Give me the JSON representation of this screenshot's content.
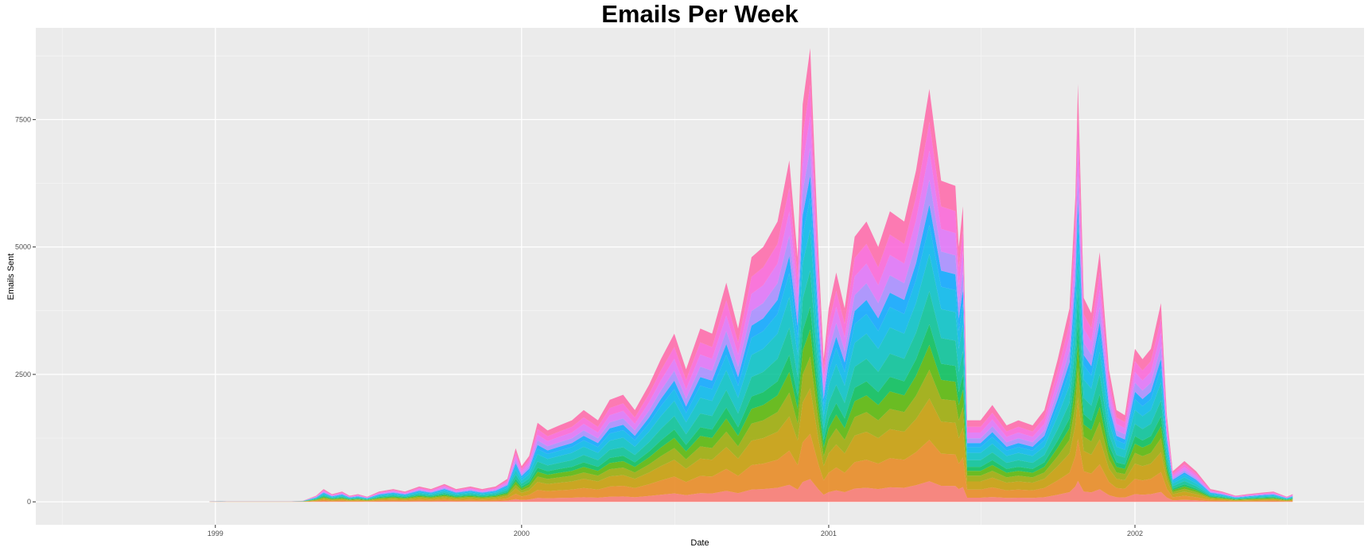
{
  "chart_data": {
    "type": "area",
    "stacked": true,
    "title": "Emails Per Week",
    "xlabel": "Date",
    "ylabel": "Emails Sent",
    "xlim": [
      "1998-06-01",
      "2002-10-01"
    ],
    "ylim": [
      -450,
      9300
    ],
    "x_ticks": [
      {
        "date": "1999-01-01",
        "label": "1999"
      },
      {
        "date": "2000-01-01",
        "label": "2000"
      },
      {
        "date": "2001-01-01",
        "label": "2001"
      },
      {
        "date": "2002-01-01",
        "label": "2002"
      }
    ],
    "y_ticks": [
      0,
      2500,
      5000,
      7500
    ],
    "grid": true,
    "legend": "none",
    "background": "#ebebeb",
    "series_colors": [
      "#f8766d",
      "#e7861b",
      "#c49a00",
      "#99a800",
      "#53b400",
      "#00bc56",
      "#00c094",
      "#00bfc4",
      "#00b6eb",
      "#06a4ff",
      "#a58aff",
      "#df70f8",
      "#fb61d7",
      "#ff66a8"
    ],
    "series_shares": [
      0.05,
      0.1,
      0.1,
      0.07,
      0.06,
      0.05,
      0.08,
      0.09,
      0.07,
      0.05,
      0.06,
      0.07,
      0.07,
      0.08
    ],
    "total_series": {
      "dates": [
        "1998-12-25",
        "1999-01-08",
        "1999-01-15",
        "1999-02-01",
        "1999-03-01",
        "1999-04-01",
        "1999-04-15",
        "1999-05-01",
        "1999-05-10",
        "1999-05-20",
        "1999-06-01",
        "1999-06-10",
        "1999-06-20",
        "1999-07-01",
        "1999-07-15",
        "1999-08-01",
        "1999-08-15",
        "1999-09-01",
        "1999-09-15",
        "1999-10-01",
        "1999-10-15",
        "1999-11-01",
        "1999-11-15",
        "1999-12-01",
        "1999-12-15",
        "1999-12-25",
        "2000-01-01",
        "2000-01-10",
        "2000-01-20",
        "2000-02-01",
        "2000-02-15",
        "2000-03-01",
        "2000-03-15",
        "2000-04-01",
        "2000-04-15",
        "2000-05-01",
        "2000-05-15",
        "2000-06-01",
        "2000-06-15",
        "2000-07-01",
        "2000-07-15",
        "2000-08-01",
        "2000-08-15",
        "2000-09-01",
        "2000-09-15",
        "2000-10-01",
        "2000-10-15",
        "2000-11-01",
        "2000-11-15",
        "2000-11-25",
        "2000-12-01",
        "2000-12-10",
        "2000-12-20",
        "2000-12-26",
        "2001-01-01",
        "2001-01-10",
        "2001-01-20",
        "2001-02-01",
        "2001-02-15",
        "2001-03-01",
        "2001-03-15",
        "2001-04-01",
        "2001-04-15",
        "2001-04-25",
        "2001-05-01",
        "2001-05-15",
        "2001-06-01",
        "2001-06-05",
        "2001-06-10",
        "2001-06-15",
        "2001-07-01",
        "2001-07-15",
        "2001-08-01",
        "2001-08-15",
        "2001-09-01",
        "2001-09-15",
        "2001-10-01",
        "2001-10-15",
        "2001-10-22",
        "2001-10-25",
        "2001-11-01",
        "2001-11-10",
        "2001-11-20",
        "2001-12-01",
        "2001-12-10",
        "2001-12-20",
        "2002-01-01",
        "2002-01-10",
        "2002-01-20",
        "2002-02-01",
        "2002-02-08",
        "2002-02-15",
        "2002-03-01",
        "2002-03-15",
        "2002-04-01",
        "2002-04-15",
        "2002-05-01",
        "2002-05-15",
        "2002-06-01",
        "2002-06-15",
        "2002-07-01",
        "2002-07-08"
      ],
      "values": [
        10,
        15,
        10,
        10,
        10,
        10,
        20,
        120,
        250,
        150,
        200,
        120,
        150,
        100,
        200,
        250,
        200,
        300,
        250,
        350,
        250,
        300,
        250,
        300,
        450,
        1050,
        700,
        900,
        1550,
        1400,
        1500,
        1600,
        1800,
        1600,
        2000,
        2100,
        1800,
        2300,
        2800,
        3300,
        2600,
        3400,
        3300,
        4300,
        3400,
        4800,
        5000,
        5500,
        6700,
        4800,
        7800,
        8900,
        4800,
        2800,
        3800,
        4500,
        3800,
        5200,
        5500,
        5000,
        5700,
        5500,
        6500,
        7500,
        8100,
        6300,
        6200,
        5000,
        5800,
        1600,
        1600,
        1900,
        1500,
        1600,
        1500,
        1800,
        2800,
        3800,
        6000,
        8200,
        4000,
        3700,
        4900,
        2600,
        1800,
        1700,
        3000,
        2800,
        3000,
        3900,
        1700,
        600,
        800,
        600,
        250,
        200,
        120,
        150,
        180,
        200,
        100,
        150
      ]
    }
  }
}
